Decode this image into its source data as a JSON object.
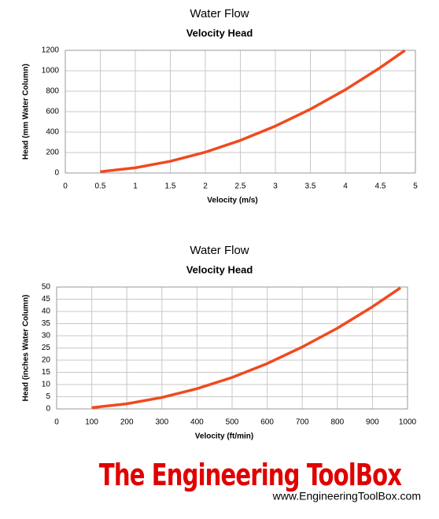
{
  "chart_data": [
    {
      "type": "line",
      "title": "Water Flow",
      "subtitle": "Velocity Head",
      "x_label": "Velocity (m/s)",
      "y_label": "Head (mm Water Column)",
      "x": [
        0.5,
        1,
        1.5,
        2,
        2.5,
        3,
        3.5,
        4,
        4.5,
        4.85
      ],
      "series": [
        {
          "color": "#f04a1e",
          "values": [
            13,
            51,
            115,
            204,
            319,
            459,
            624,
            815,
            1032,
            1199
          ]
        }
      ],
      "xlim": [
        0,
        5
      ],
      "xticks": [
        0,
        0.5,
        1,
        1.5,
        2,
        2.5,
        3,
        3.5,
        4,
        4.5,
        5
      ],
      "ylim": [
        0,
        1200
      ],
      "yticks": [
        0,
        200,
        400,
        600,
        800,
        1000,
        1200
      ],
      "grid": true
    },
    {
      "type": "line",
      "title": "Water Flow",
      "subtitle": "Velocity Head",
      "x_label": "Velocity (ft/min)",
      "y_label": "Head (inches Water Column)",
      "x": [
        100,
        200,
        300,
        400,
        500,
        600,
        700,
        800,
        900,
        980
      ],
      "series": [
        {
          "color": "#f04a1e",
          "values": [
            0.5,
            2.1,
            4.7,
            8.3,
            12.9,
            18.6,
            25.4,
            33.1,
            41.9,
            49.7
          ]
        }
      ],
      "xlim": [
        0,
        1000
      ],
      "xticks": [
        0,
        100,
        200,
        300,
        400,
        500,
        600,
        700,
        800,
        900,
        1000
      ],
      "ylim": [
        0,
        50
      ],
      "yticks": [
        0,
        5,
        10,
        15,
        20,
        25,
        30,
        35,
        40,
        45,
        50
      ],
      "grid": true
    }
  ],
  "logo": {
    "text": "The Engineering ToolBox",
    "url": "www.EngineeringToolBox.com"
  }
}
